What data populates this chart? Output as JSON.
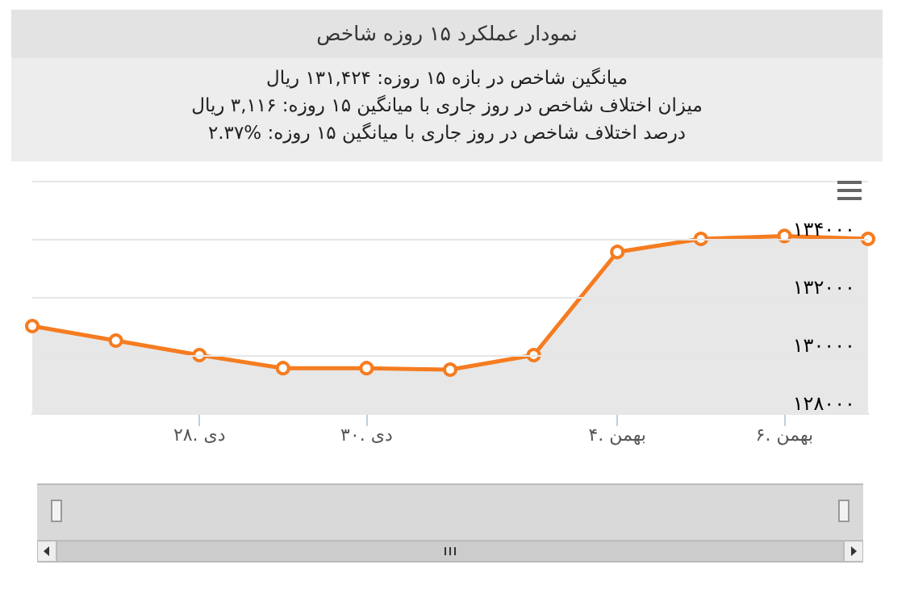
{
  "chart_data": {
    "type": "area",
    "title": "نمودار عملکرد ۱۵ روزه شاخص",
    "subtitle": "میانگین شاخص در بازه ۱۵ روزه: ۱۳۱,۴۲۴ ریال",
    "annotations": [
      "میزان اختلاف شاخص در روز جاری با میانگین ۱۵ روزه: ۳,۱۱۶ ریال",
      "درصد اختلاف شاخص در روز جاری با میانگین ۱۵ روزه: %۲.۳۷"
    ],
    "categories": [
      null,
      null,
      "۲۸. دی",
      null,
      "۳۰. دی",
      null,
      null,
      "۴. بهمن",
      null,
      "۶. بهمن",
      null
    ],
    "series": [
      {
        "color": "#f57c20",
        "values": [
          131000,
          130500,
          130000,
          129550,
          129550,
          129500,
          130000,
          133550,
          134000,
          134100,
          134000
        ]
      }
    ],
    "ylim": [
      128000,
      136000
    ],
    "yticks": [
      {
        "value": 128000,
        "label": "۱۲۸۰۰۰"
      },
      {
        "value": 130000,
        "label": "۱۳۰۰۰۰"
      },
      {
        "value": 132000,
        "label": "۱۳۲۰۰۰"
      },
      {
        "value": 134000,
        "label": "۱۳۴۰۰۰"
      },
      {
        "value": 136000,
        "label": null
      }
    ],
    "grid": "y",
    "marker": "circle",
    "line_style": "solid"
  }
}
